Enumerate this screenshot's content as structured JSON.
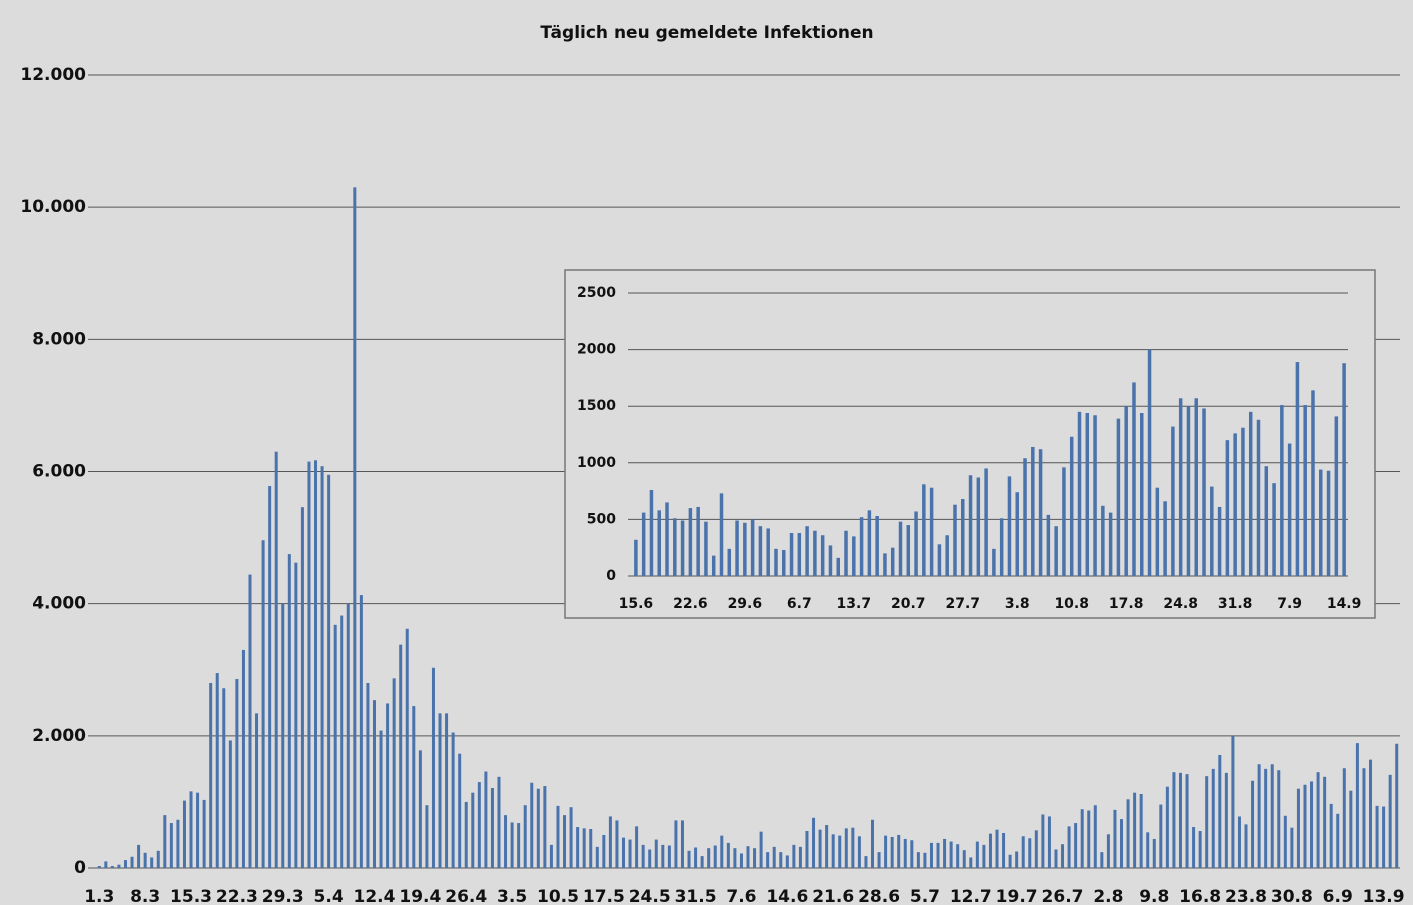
{
  "chart_data": [
    {
      "type": "bar",
      "title": "Täglich neu gemeldete Infektionen",
      "color": "#4a72ab",
      "grid": true,
      "ylim": [
        0,
        12000
      ],
      "yticks": [
        0,
        {
          "value": 2000,
          "label": "2.000"
        },
        {
          "value": 4000,
          "label": "4.000"
        },
        {
          "value": 6000,
          "label": "6.000"
        },
        {
          "value": 8000,
          "label": "8.000"
        },
        {
          "value": 10000,
          "label": "10.000"
        },
        {
          "value": 12000,
          "label": "12.000"
        }
      ],
      "categories": [
        "1.3",
        null,
        null,
        null,
        null,
        null,
        null,
        "8.3",
        null,
        null,
        null,
        null,
        null,
        null,
        "15.3",
        null,
        null,
        null,
        null,
        null,
        null,
        "22.3",
        null,
        null,
        null,
        null,
        null,
        null,
        "29.3",
        null,
        null,
        null,
        null,
        null,
        null,
        "5.4",
        null,
        null,
        null,
        null,
        null,
        null,
        "12.4",
        null,
        null,
        null,
        null,
        null,
        null,
        "19.4",
        null,
        null,
        null,
        null,
        null,
        null,
        "26.4",
        null,
        null,
        null,
        null,
        null,
        null,
        "3.5",
        null,
        null,
        null,
        null,
        null,
        null,
        "10.5",
        null,
        null,
        null,
        null,
        null,
        null,
        "17.5",
        null,
        null,
        null,
        null,
        null,
        null,
        "24.5",
        null,
        null,
        null,
        null,
        null,
        null,
        "31.5",
        null,
        null,
        null,
        null,
        null,
        null,
        "7.6",
        null,
        null,
        null,
        null,
        null,
        null,
        "14.6",
        null,
        null,
        null,
        null,
        null,
        null,
        "21.6",
        null,
        null,
        null,
        null,
        null,
        null,
        "28.6",
        null,
        null,
        null,
        null,
        null,
        null,
        "5.7",
        null,
        null,
        null,
        null,
        null,
        null,
        "12.7",
        null,
        null,
        null,
        null,
        null,
        null,
        "19.7",
        null,
        null,
        null,
        null,
        null,
        null,
        "26.7",
        null,
        null,
        null,
        null,
        null,
        null,
        "2.8",
        null,
        null,
        null,
        null,
        null,
        null,
        "9.8",
        null,
        null,
        null,
        null,
        null,
        null,
        "16.8",
        null,
        null,
        null,
        null,
        null,
        null,
        "23.8",
        null,
        null,
        null,
        null,
        null,
        null,
        "30.8",
        null,
        null,
        null,
        null,
        null,
        null,
        "6.9",
        null,
        null,
        null,
        null,
        null,
        null,
        "13.9",
        null,
        null
      ],
      "values": [
        30,
        100,
        30,
        50,
        120,
        170,
        350,
        230,
        160,
        260,
        800,
        680,
        730,
        1020,
        1160,
        1140,
        1030,
        2800,
        2950,
        2720,
        1930,
        2860,
        3300,
        4440,
        2340,
        4960,
        5780,
        6300,
        4000,
        4750,
        4620,
        5460,
        6150,
        6170,
        6080,
        5950,
        3680,
        3820,
        4000,
        10300,
        4130,
        2800,
        2540,
        2080,
        2490,
        2870,
        3380,
        3620,
        2450,
        1780,
        950,
        3030,
        2340,
        2340,
        2050,
        1730,
        1000,
        1140,
        1300,
        1460,
        1210,
        1380,
        800,
        690,
        680,
        950,
        1290,
        1200,
        1240,
        350,
        940,
        800,
        920,
        620,
        600,
        590,
        320,
        500,
        780,
        720,
        460,
        430,
        630,
        350,
        280,
        430,
        350,
        340,
        720,
        720,
        260,
        310,
        180,
        300,
        340,
        490,
        380,
        300,
        220,
        330,
        300,
        550,
        240,
        320,
        240,
        190,
        350,
        320,
        560,
        760,
        580,
        650,
        510,
        490,
        600,
        610,
        480,
        180,
        730,
        240,
        490,
        470,
        500,
        440,
        420,
        240,
        230,
        380,
        380,
        440,
        400,
        360,
        270,
        160,
        400,
        350,
        520,
        580,
        530,
        200,
        250,
        480,
        450,
        570,
        810,
        780,
        280,
        360,
        630,
        680,
        890,
        870,
        950,
        240,
        510,
        880,
        740,
        1040,
        1140,
        1120,
        540,
        440,
        960,
        1230,
        1450,
        1440,
        1420,
        620,
        560,
        1390,
        1500,
        1710,
        1440,
        2000,
        780,
        660,
        1320,
        1570,
        1500,
        1570,
        1480,
        790,
        610,
        1200,
        1260,
        1310,
        1450,
        1380,
        970,
        820,
        1510,
        1170,
        1890,
        1510,
        1640,
        940,
        930,
        1410,
        1880
      ]
    },
    {
      "type": "bar",
      "color": "#4a72ab",
      "grid": true,
      "ylim": [
        0,
        2500
      ],
      "yticks": [
        0,
        500,
        1000,
        1500,
        2000,
        2500
      ],
      "categories": [
        "15.6",
        null,
        null,
        null,
        null,
        null,
        null,
        "22.6",
        null,
        null,
        null,
        null,
        null,
        null,
        "29.6",
        null,
        null,
        null,
        null,
        null,
        null,
        "6.7",
        null,
        null,
        null,
        null,
        null,
        null,
        "13.7",
        null,
        null,
        null,
        null,
        null,
        null,
        "20.7",
        null,
        null,
        null,
        null,
        null,
        null,
        "27.7",
        null,
        null,
        null,
        null,
        null,
        null,
        "3.8",
        null,
        null,
        null,
        null,
        null,
        null,
        "10.8",
        null,
        null,
        null,
        null,
        null,
        null,
        "17.8",
        null,
        null,
        null,
        null,
        null,
        null,
        "24.8",
        null,
        null,
        null,
        null,
        null,
        null,
        "31.8",
        null,
        null,
        null,
        null,
        null,
        null,
        "7.9",
        null,
        null,
        null,
        null,
        null,
        null,
        "14.9"
      ],
      "values": [
        320,
        560,
        760,
        580,
        650,
        510,
        490,
        600,
        610,
        480,
        180,
        730,
        240,
        490,
        470,
        500,
        440,
        420,
        240,
        230,
        380,
        380,
        440,
        400,
        360,
        270,
        160,
        400,
        350,
        520,
        580,
        530,
        200,
        250,
        480,
        450,
        570,
        810,
        780,
        280,
        360,
        630,
        680,
        890,
        870,
        950,
        240,
        510,
        880,
        740,
        1040,
        1140,
        1120,
        540,
        440,
        960,
        1230,
        1450,
        1440,
        1420,
        620,
        560,
        1390,
        1500,
        1710,
        1440,
        2000,
        780,
        660,
        1320,
        1570,
        1500,
        1570,
        1480,
        790,
        610,
        1200,
        1260,
        1310,
        1450,
        1380,
        970,
        820,
        1510,
        1170,
        1890,
        1510,
        1640,
        940,
        930,
        1410,
        1880
      ]
    }
  ]
}
